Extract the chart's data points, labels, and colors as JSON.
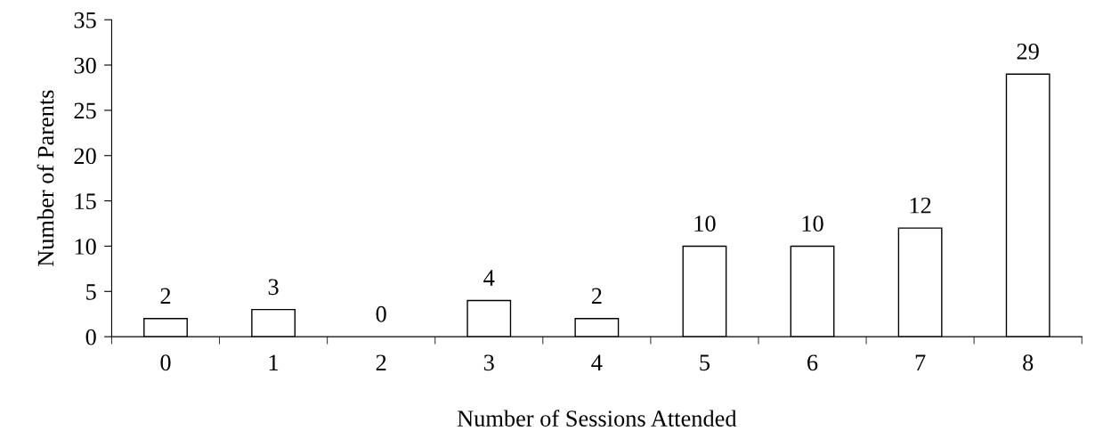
{
  "chart_data": {
    "type": "bar",
    "xlabel": "Number of Sessions Attended",
    "ylabel": "Number of Parents",
    "categories": [
      "0",
      "1",
      "2",
      "3",
      "4",
      "5",
      "6",
      "7",
      "8"
    ],
    "values": [
      2,
      3,
      0,
      4,
      2,
      10,
      10,
      12,
      29
    ],
    "color": "#ffffff",
    "ylim": [
      0,
      35
    ],
    "yticks": [
      0,
      5,
      10,
      15,
      20,
      25,
      30,
      35
    ],
    "data_labels": true,
    "grid": false
  }
}
